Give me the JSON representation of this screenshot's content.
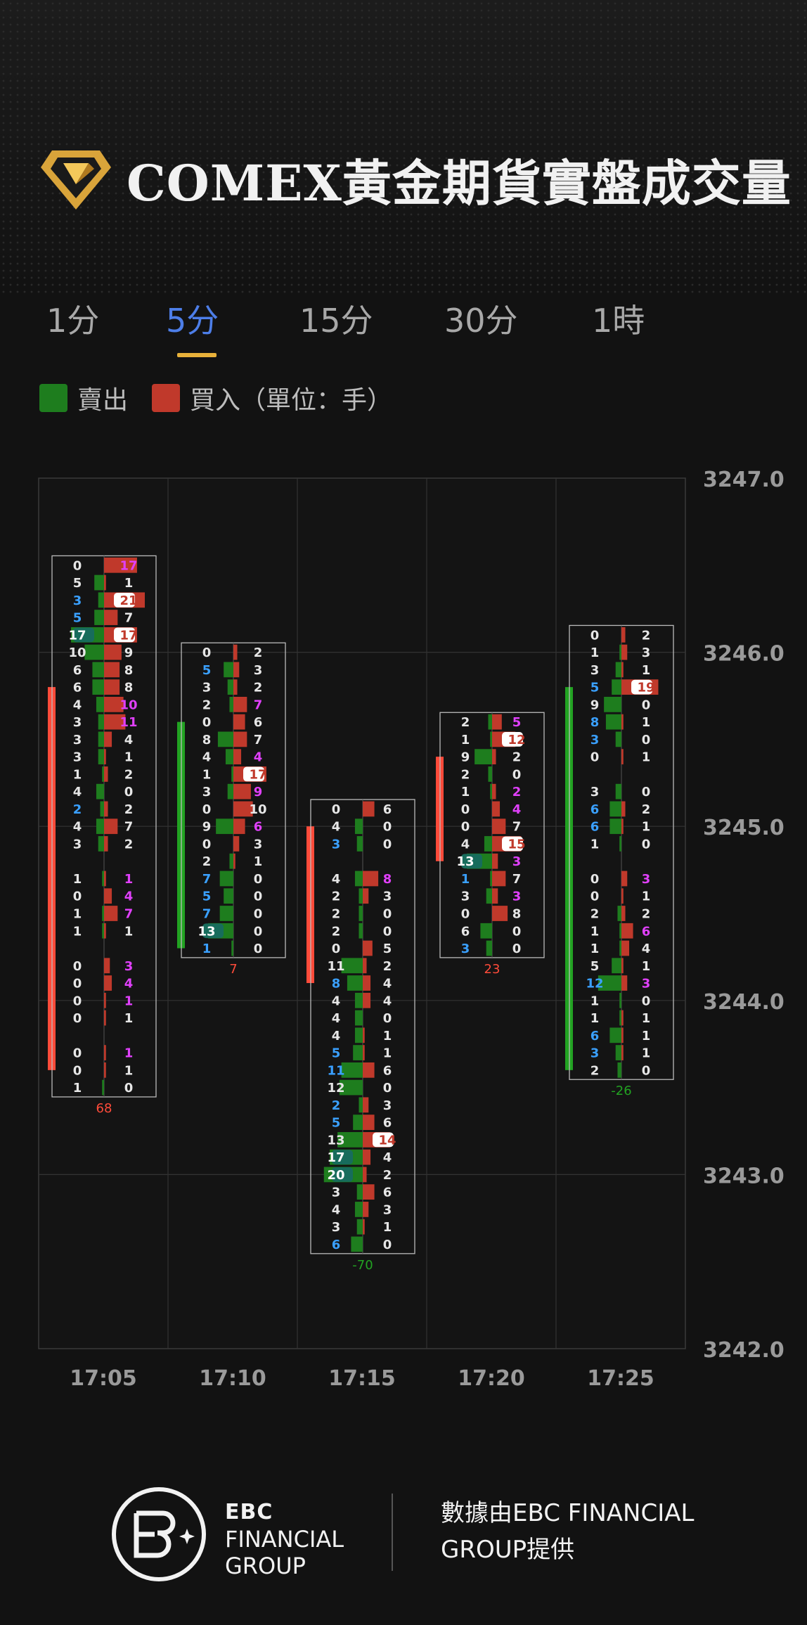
{
  "title": "COMEX黃金期貨實盤成交量",
  "tabs": [
    {
      "label": "1分",
      "active": false
    },
    {
      "label": "5分",
      "active": true
    },
    {
      "label": "15分",
      "active": false
    },
    {
      "label": "30分",
      "active": false
    },
    {
      "label": "1時",
      "active": false
    }
  ],
  "legend": {
    "sell": "賣出",
    "buy": "買入（單位：手）",
    "sell_color": "#1e7d1e",
    "buy_color": "#c0392b"
  },
  "colors": {
    "sell": "#1e7d1e",
    "buy": "#c0392b",
    "tab_active": "#4d7ee8",
    "tab_underline": "#e8b13a",
    "delta_pos": "#ff4b3a",
    "delta_neg": "#22a322",
    "hl_pink": "#e040fb",
    "hl_blue": "#3aa0ff"
  },
  "chart_data": {
    "type": "footprint",
    "ylim": [
      3242.0,
      3247.0
    ],
    "y_ticks": [
      "3247.0",
      "3246.0",
      "3245.0",
      "3244.0",
      "3243.0",
      "3242.0"
    ],
    "tick_size": 0.1,
    "categories": [
      "17:05",
      "17:10",
      "17:15",
      "17:20",
      "17:25"
    ],
    "candles": [
      {
        "time": "17:05",
        "top": 3246.5,
        "bar_high": 3245.8,
        "bar_low": 3243.6,
        "bar_color": "up",
        "delta": "68",
        "sell": [
          0,
          5,
          3,
          5,
          17,
          10,
          6,
          6,
          4,
          3,
          3,
          3,
          1,
          4,
          2,
          4,
          3,
          null,
          1,
          0,
          1,
          1,
          null,
          0,
          0,
          0,
          0,
          null,
          0,
          0,
          1
        ],
        "buy": [
          17,
          1,
          21,
          7,
          17,
          9,
          8,
          8,
          10,
          11,
          4,
          1,
          2,
          0,
          2,
          7,
          2,
          null,
          1,
          4,
          7,
          1,
          null,
          3,
          4,
          1,
          1,
          null,
          1,
          1,
          0
        ]
      },
      {
        "time": "17:10",
        "top": 3246.0,
        "bar_high": 3245.6,
        "bar_low": 3244.3,
        "bar_color": "down",
        "delta": "7",
        "sell": [
          0,
          5,
          3,
          2,
          0,
          8,
          4,
          1,
          3,
          0,
          9,
          0,
          2,
          7,
          5,
          7,
          13,
          1
        ],
        "buy": [
          2,
          3,
          2,
          7,
          6,
          7,
          4,
          17,
          9,
          10,
          6,
          3,
          1,
          0,
          0,
          0,
          0,
          0
        ]
      },
      {
        "time": "17:15",
        "top": 3245.1,
        "bar_high": 3245.0,
        "bar_low": 3244.1,
        "bar_color": "up",
        "delta": "-70",
        "sell": [
          0,
          4,
          3,
          null,
          4,
          2,
          2,
          2,
          0,
          11,
          8,
          4,
          4,
          4,
          5,
          11,
          12,
          2,
          5,
          13,
          17,
          20,
          3,
          4,
          3,
          6
        ],
        "buy": [
          6,
          0,
          0,
          null,
          8,
          3,
          0,
          0,
          5,
          2,
          4,
          4,
          0,
          1,
          1,
          6,
          0,
          3,
          6,
          14,
          4,
          2,
          6,
          3,
          1,
          0
        ]
      },
      {
        "time": "17:20",
        "top": 3245.6,
        "bar_high": 3245.4,
        "bar_low": 3244.8,
        "bar_color": "up",
        "delta": "23",
        "sell": [
          2,
          1,
          9,
          2,
          1,
          0,
          0,
          4,
          13,
          1,
          3,
          0,
          6,
          3
        ],
        "buy": [
          5,
          12,
          2,
          0,
          2,
          4,
          7,
          15,
          3,
          7,
          3,
          8,
          0,
          0
        ]
      },
      {
        "time": "17:25",
        "top": 3246.1,
        "bar_high": 3245.8,
        "bar_low": 3243.6,
        "bar_color": "down",
        "delta": "-26",
        "sell": [
          0,
          1,
          3,
          5,
          9,
          8,
          3,
          0,
          null,
          3,
          6,
          6,
          1,
          null,
          0,
          0,
          2,
          1,
          1,
          5,
          12,
          1,
          1,
          6,
          3,
          2
        ],
        "buy": [
          2,
          3,
          1,
          19,
          0,
          1,
          0,
          1,
          null,
          0,
          2,
          1,
          0,
          null,
          3,
          1,
          2,
          6,
          4,
          1,
          3,
          0,
          1,
          1,
          1,
          0
        ]
      }
    ],
    "highlights": {
      "0": {
        "sell_blue": [
          2,
          3,
          14
        ],
        "buy_pink": [
          0,
          2,
          4,
          8,
          9,
          18,
          19,
          20,
          23,
          24,
          25,
          28
        ],
        "sell_box": [
          4
        ],
        "buy_box": [
          2,
          4
        ]
      },
      "1": {
        "sell_blue": [
          1,
          13,
          14,
          15,
          16,
          17
        ],
        "buy_pink": [
          3,
          6,
          8,
          10
        ],
        "buy_box": [
          7
        ],
        "sell_box": [
          16
        ]
      },
      "2": {
        "sell_blue": [
          2,
          10,
          14,
          15,
          17,
          18,
          25
        ],
        "buy_pink": [
          4
        ],
        "buy_box": [
          19
        ],
        "sell_box": [
          20,
          21
        ]
      },
      "3": {
        "sell_blue": [
          9,
          13
        ],
        "buy_pink": [
          0,
          4,
          5,
          8,
          10
        ],
        "buy_box": [
          1,
          7
        ],
        "sell_box": [
          8
        ]
      },
      "4": {
        "sell_blue": [
          3,
          5,
          6,
          10,
          11,
          20,
          23,
          24
        ],
        "buy_pink": [
          14,
          17,
          20
        ],
        "buy_box": [
          3
        ]
      }
    }
  },
  "footer": {
    "brand_line1": "EBC",
    "brand_line2": "FINANCIAL",
    "brand_line3": "GROUP",
    "credit": "數據由EBC FINANCIAL GROUP提供"
  }
}
